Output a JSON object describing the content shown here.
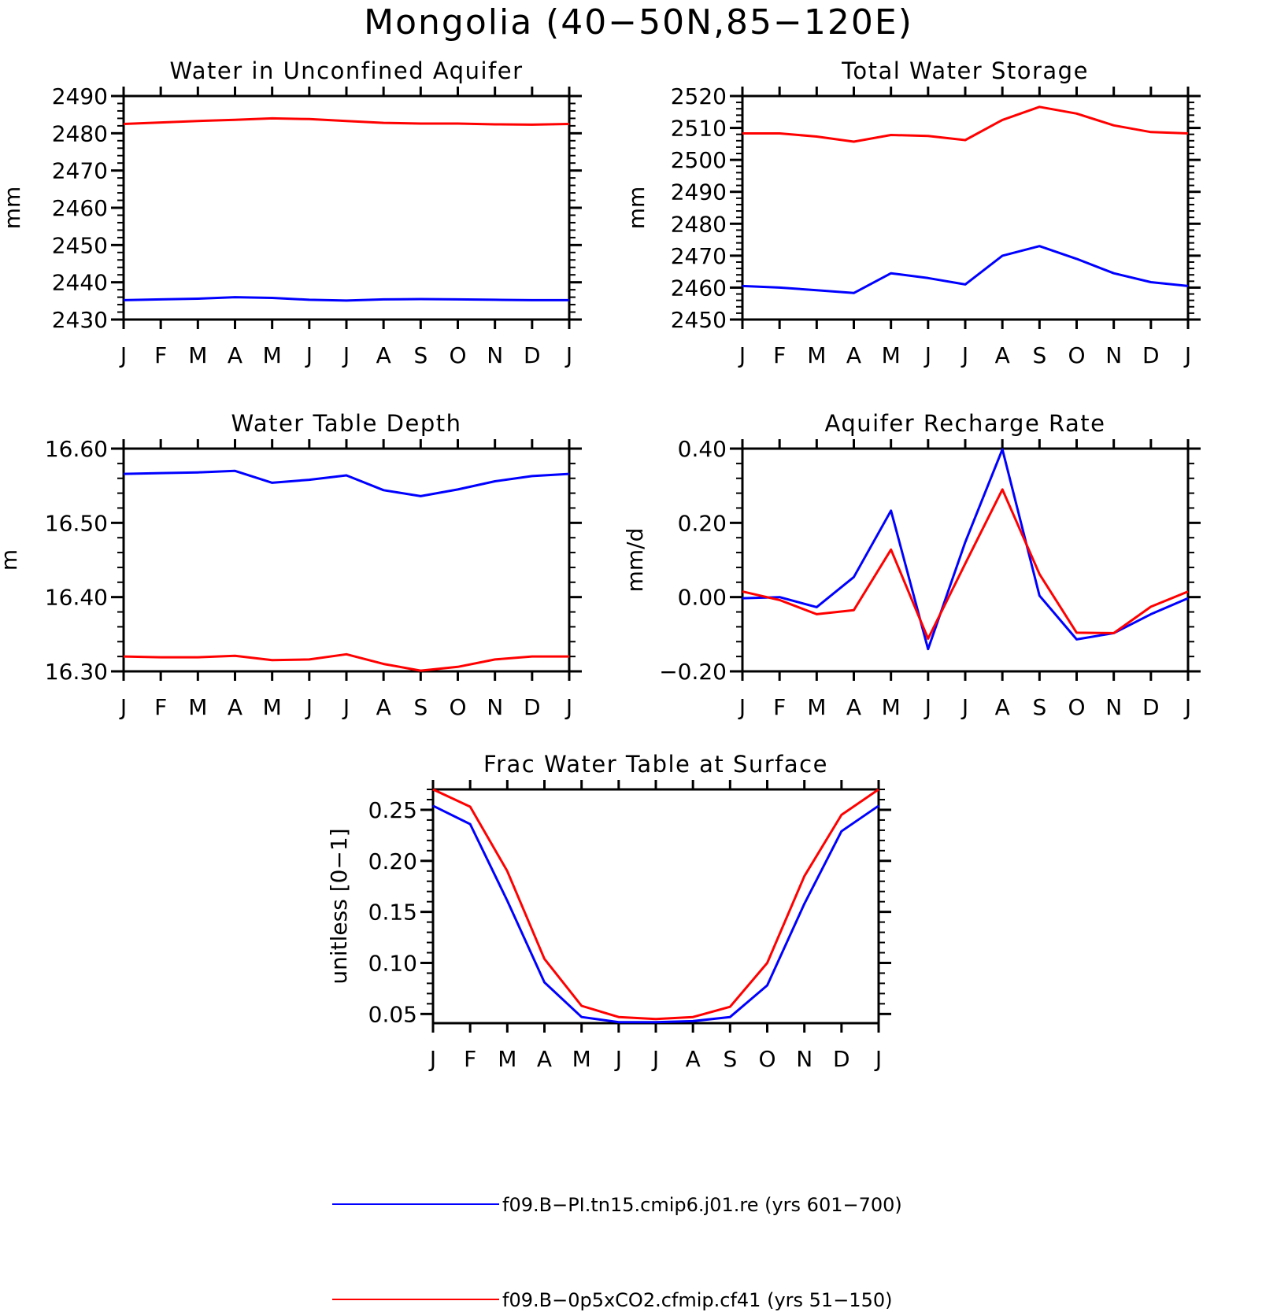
{
  "title": "Mongolia (40−50N,85−120E)",
  "months": [
    "J",
    "F",
    "M",
    "A",
    "M",
    "J",
    "J",
    "A",
    "S",
    "O",
    "N",
    "D",
    "J"
  ],
  "colors": {
    "blue": "#0000ff",
    "red": "#ff0000"
  },
  "legend": [
    {
      "label": "f09.B−PI.tn15.cmip6.j01.re (yrs 601−700)",
      "color": "#0000ff"
    },
    {
      "label": "f09.B−0p5xCO2.cfmip.cf41 (yrs 51−150)",
      "color": "#ff0000"
    }
  ],
  "chart_data": [
    {
      "type": "line",
      "title": "Water in Unconfined Aquifer",
      "ylabel": "mm",
      "ylim": [
        2430,
        2490
      ],
      "yticks": [
        2430,
        2440,
        2450,
        2460,
        2470,
        2480,
        2490
      ],
      "ytick_labels": [
        "2430",
        "2440",
        "2450",
        "2460",
        "2470",
        "2480",
        "2490"
      ],
      "series": [
        {
          "color": "#0000ff",
          "values": [
            2435.2,
            2435.4,
            2435.6,
            2436.0,
            2435.8,
            2435.3,
            2435.1,
            2435.4,
            2435.5,
            2435.4,
            2435.3,
            2435.2,
            2435.2
          ]
        },
        {
          "color": "#ff0000",
          "values": [
            2482.5,
            2482.9,
            2483.3,
            2483.6,
            2484.0,
            2483.8,
            2483.3,
            2482.8,
            2482.6,
            2482.6,
            2482.4,
            2482.3,
            2482.5
          ]
        }
      ]
    },
    {
      "type": "line",
      "title": "Total Water Storage",
      "ylabel": "mm",
      "ylim": [
        2450,
        2520
      ],
      "yticks": [
        2450,
        2460,
        2470,
        2480,
        2490,
        2500,
        2510,
        2520
      ],
      "ytick_labels": [
        "2450",
        "2460",
        "2470",
        "2480",
        "2490",
        "2500",
        "2510",
        "2520"
      ],
      "series": [
        {
          "color": "#0000ff",
          "values": [
            2460.5,
            2460.0,
            2459.2,
            2458.3,
            2464.5,
            2463.0,
            2461.0,
            2470.0,
            2473.0,
            2469.0,
            2464.5,
            2461.7,
            2460.5
          ]
        },
        {
          "color": "#ff0000",
          "values": [
            2508.3,
            2508.3,
            2507.3,
            2505.7,
            2507.8,
            2507.5,
            2506.2,
            2512.5,
            2516.6,
            2514.5,
            2510.8,
            2508.7,
            2508.3
          ]
        }
      ]
    },
    {
      "type": "line",
      "title": "Water Table Depth",
      "ylabel": "m",
      "ylim": [
        16.3,
        16.6
      ],
      "yticks": [
        16.3,
        16.4,
        16.5,
        16.6
      ],
      "ytick_labels": [
        "16.30",
        "16.40",
        "16.50",
        "16.60"
      ],
      "series": [
        {
          "color": "#0000ff",
          "values": [
            16.566,
            16.567,
            16.568,
            16.57,
            16.554,
            16.558,
            16.564,
            16.544,
            16.536,
            16.545,
            16.556,
            16.563,
            16.566
          ]
        },
        {
          "color": "#ff0000",
          "values": [
            16.32,
            16.319,
            16.319,
            16.321,
            16.315,
            16.316,
            16.323,
            16.31,
            16.301,
            16.306,
            16.316,
            16.32,
            16.32
          ]
        }
      ]
    },
    {
      "type": "line",
      "title": "Aquifer Recharge Rate",
      "ylabel": "mm/d",
      "ylim": [
        -0.2,
        0.4
      ],
      "yticks": [
        -0.2,
        0.0,
        0.2,
        0.4
      ],
      "ytick_labels": [
        "−0.20",
        "0.00",
        "0.20",
        "0.40"
      ],
      "series": [
        {
          "color": "#0000ff",
          "values": [
            -0.003,
            0.0,
            -0.027,
            0.054,
            0.233,
            -0.14,
            0.148,
            0.398,
            0.004,
            -0.114,
            -0.097,
            -0.046,
            -0.003
          ]
        },
        {
          "color": "#ff0000",
          "values": [
            0.015,
            -0.008,
            -0.046,
            -0.035,
            0.128,
            -0.112,
            0.09,
            0.29,
            0.062,
            -0.096,
            -0.097,
            -0.026,
            0.015
          ]
        }
      ]
    },
    {
      "type": "line",
      "title": "Frac Water Table at Surface",
      "ylabel": "unitless [0−1]",
      "ylim": [
        0.041,
        0.27
      ],
      "yticks": [
        0.05,
        0.1,
        0.15,
        0.2,
        0.25
      ],
      "ytick_labels": [
        "0.05",
        "0.10",
        "0.15",
        "0.20",
        "0.25"
      ],
      "series": [
        {
          "color": "#0000ff",
          "values": [
            0.254,
            0.236,
            0.161,
            0.081,
            0.047,
            0.042,
            0.042,
            0.043,
            0.047,
            0.078,
            0.158,
            0.229,
            0.254
          ]
        },
        {
          "color": "#ff0000",
          "values": [
            0.27,
            0.253,
            0.19,
            0.104,
            0.058,
            0.047,
            0.045,
            0.047,
            0.057,
            0.1,
            0.185,
            0.245,
            0.27
          ]
        }
      ]
    }
  ]
}
